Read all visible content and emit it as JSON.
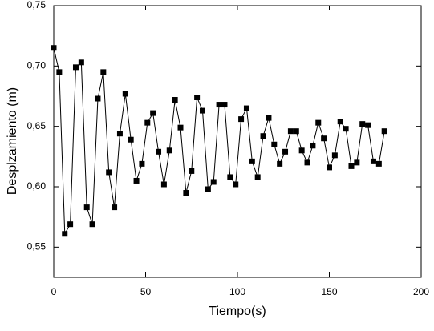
{
  "chart_data": {
    "type": "line",
    "x_label": "Tiempo(s)",
    "y_label": "Desplzamiento (m)",
    "x": [
      0,
      3,
      6,
      9,
      12,
      15,
      18,
      21,
      24,
      27,
      30,
      33,
      36,
      39,
      42,
      45,
      48,
      51,
      54,
      57,
      60,
      63,
      66,
      69,
      72,
      75,
      78,
      81,
      84,
      87,
      90,
      93,
      96,
      99,
      102,
      105,
      108,
      111,
      114,
      117,
      120,
      123,
      126,
      129,
      132,
      135,
      138,
      141,
      144,
      147,
      150,
      153,
      156,
      159,
      162,
      165,
      168,
      171,
      174,
      177,
      180
    ],
    "series": [
      {
        "color": "#000000",
        "values": [
          0.715,
          0.695,
          0.561,
          0.569,
          0.699,
          0.703,
          0.583,
          0.569,
          0.673,
          0.695,
          0.612,
          0.583,
          0.644,
          0.677,
          0.639,
          0.605,
          0.619,
          0.653,
          0.661,
          0.629,
          0.602,
          0.63,
          0.672,
          0.649,
          0.595,
          0.613,
          0.674,
          0.663,
          0.598,
          0.604,
          0.668,
          0.668,
          0.608,
          0.602,
          0.656,
          0.665,
          0.621,
          0.608,
          0.642,
          0.657,
          0.635,
          0.619,
          0.629,
          0.646,
          0.646,
          0.63,
          0.62,
          0.634,
          0.653,
          0.64,
          0.616,
          0.626,
          0.654,
          0.648,
          0.617,
          0.62,
          0.652,
          0.651,
          0.621,
          0.619,
          0.646
        ]
      }
    ],
    "xlim": [
      0,
      200
    ],
    "xticks": [
      0,
      50,
      100,
      150,
      200
    ],
    "ylim": [
      0.525,
      0.75
    ],
    "yticks": [
      {
        "value": 0.55,
        "label": "0,55"
      },
      {
        "value": 0.6,
        "label": "0,60"
      },
      {
        "value": 0.65,
        "label": "0,65"
      },
      {
        "value": 0.7,
        "label": "0,70"
      },
      {
        "value": 0.75,
        "label": "0,75"
      }
    ],
    "grid": false
  }
}
